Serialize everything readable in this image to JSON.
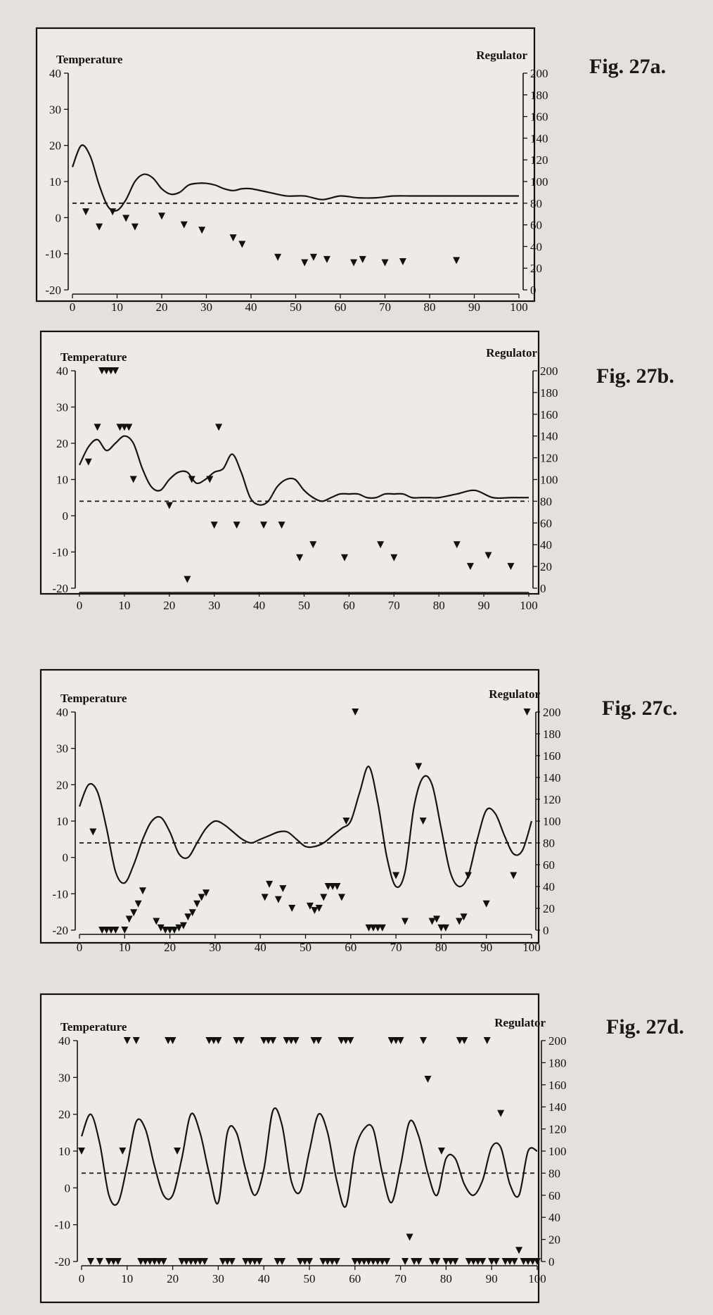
{
  "chart_data": [
    {
      "type": "line",
      "title": "Fig. 27a.",
      "ylabel_left": "Temperature",
      "ylabel_right": "Regulator",
      "x_ticks": [
        "0",
        "10",
        "20",
        "30",
        "40",
        "50",
        "60",
        "70",
        "80",
        "90",
        "100"
      ],
      "y_left_ticks": [
        "40",
        "30",
        "20",
        "10",
        "0",
        "-10",
        "-20"
      ],
      "y_right_ticks": [
        "200",
        "180",
        "160",
        "140",
        "120",
        "100",
        "80",
        "60",
        "40",
        "20",
        "0"
      ],
      "xlim": [
        0,
        100
      ],
      "ylim_left": [
        -20,
        40
      ],
      "ylim_right": [
        0,
        200
      ],
      "reference_level": 4,
      "series": [
        {
          "role": "temperature",
          "x": [
            0,
            2,
            4,
            6,
            8,
            10,
            12,
            14,
            16,
            18,
            20,
            22,
            24,
            26,
            28,
            30,
            32,
            34,
            36,
            38,
            40,
            44,
            48,
            52,
            56,
            60,
            64,
            68,
            72,
            76,
            80,
            84,
            88,
            92,
            96,
            100
          ],
          "values": [
            14,
            20,
            17,
            9,
            3,
            2,
            5,
            10,
            12,
            11,
            8,
            6.5,
            7,
            9,
            9.5,
            9.5,
            9,
            8,
            7.5,
            8,
            8,
            7,
            6,
            6,
            5,
            6,
            5.5,
            5.5,
            6,
            6,
            6,
            6,
            6,
            6,
            6,
            6
          ]
        },
        {
          "role": "regulator",
          "x": [
            3,
            6,
            9,
            12,
            14,
            20,
            25,
            29,
            36,
            38,
            46,
            52,
            54,
            57,
            63,
            65,
            70,
            74,
            86
          ],
          "values": [
            72,
            58,
            72,
            66,
            58,
            68,
            60,
            55,
            48,
            42,
            30,
            25,
            30,
            28,
            25,
            28,
            25,
            26,
            27
          ]
        }
      ]
    },
    {
      "type": "line",
      "title": "Fig. 27b.",
      "ylabel_left": "Temperature",
      "ylabel_right": "Regulator",
      "x_ticks": [
        "0",
        "10",
        "20",
        "30",
        "40",
        "50",
        "60",
        "70",
        "80",
        "90",
        "100"
      ],
      "y_left_ticks": [
        "40",
        "30",
        "20",
        "10",
        "0",
        "-10",
        "-20"
      ],
      "y_right_ticks": [
        "200",
        "180",
        "160",
        "140",
        "120",
        "100",
        "80",
        "60",
        "40",
        "20",
        "0"
      ],
      "xlim": [
        0,
        100
      ],
      "ylim_left": [
        -20,
        40
      ],
      "ylim_right": [
        0,
        200
      ],
      "reference_level": 4,
      "series": [
        {
          "role": "temperature",
          "x": [
            0,
            2,
            4,
            6,
            8,
            10,
            12,
            14,
            16,
            18,
            20,
            22,
            24,
            26,
            28,
            30,
            32,
            34,
            36,
            38,
            40,
            42,
            44,
            46,
            48,
            50,
            52,
            54,
            56,
            58,
            60,
            62,
            64,
            66,
            68,
            70,
            72,
            74,
            76,
            78,
            80,
            84,
            88,
            92,
            96,
            100
          ],
          "values": [
            14,
            19,
            21,
            18,
            20,
            22,
            20,
            13,
            8,
            7,
            10,
            12,
            12,
            9,
            10,
            12,
            13,
            17,
            12,
            5,
            3,
            4,
            8,
            10,
            10,
            7,
            5,
            4,
            5,
            6,
            6,
            6,
            5,
            5,
            6,
            6,
            6,
            5,
            5,
            5,
            5,
            6,
            7,
            5,
            5,
            5
          ]
        },
        {
          "role": "regulator",
          "x": [
            2,
            4,
            5,
            6,
            7,
            8,
            9,
            10,
            11,
            12,
            20,
            24,
            25,
            29,
            30,
            31,
            35,
            41,
            45,
            49,
            52,
            59,
            67,
            70,
            84,
            87,
            91,
            96
          ],
          "values": [
            116,
            148,
            200,
            200,
            200,
            200,
            148,
            148,
            148,
            100,
            76,
            8,
            100,
            100,
            58,
            148,
            58,
            58,
            58,
            28,
            40,
            28,
            40,
            28,
            40,
            20,
            30,
            20
          ]
        }
      ]
    },
    {
      "type": "line",
      "title": "Fig. 27c.",
      "ylabel_left": "Temperature",
      "ylabel_right": "Regulator",
      "x_ticks": [
        "0",
        "10",
        "20",
        "30",
        "40",
        "50",
        "60",
        "70",
        "80",
        "90",
        "100"
      ],
      "y_left_ticks": [
        "40",
        "30",
        "20",
        "10",
        "0",
        "-10",
        "-20"
      ],
      "y_right_ticks": [
        "200",
        "180",
        "160",
        "140",
        "120",
        "100",
        "80",
        "60",
        "40",
        "20",
        "0"
      ],
      "xlim": [
        0,
        100
      ],
      "ylim_left": [
        -20,
        40
      ],
      "ylim_right": [
        0,
        200
      ],
      "reference_level": 4,
      "series": [
        {
          "role": "temperature",
          "x": [
            0,
            2,
            4,
            6,
            8,
            10,
            12,
            14,
            16,
            18,
            20,
            22,
            24,
            26,
            28,
            30,
            32,
            34,
            36,
            38,
            40,
            42,
            44,
            46,
            48,
            50,
            52,
            54,
            56,
            58,
            60,
            62,
            64,
            66,
            68,
            70,
            72,
            74,
            76,
            78,
            80,
            82,
            84,
            86,
            88,
            90,
            92,
            94,
            96,
            98,
            100
          ],
          "values": [
            14,
            20,
            18,
            8,
            -4,
            -7,
            -2,
            5,
            10,
            11,
            7,
            1,
            0,
            4,
            8,
            10,
            9,
            7,
            5,
            4,
            5,
            6,
            7,
            7,
            5,
            3,
            3,
            4,
            6,
            8,
            10,
            18,
            25,
            15,
            0,
            -8,
            -4,
            14,
            22,
            20,
            8,
            -4,
            -8,
            -5,
            5,
            13,
            12,
            6,
            1,
            2,
            10
          ]
        },
        {
          "role": "regulator",
          "x": [
            3,
            5,
            6,
            7,
            8,
            10,
            11,
            12,
            13,
            14,
            17,
            18,
            19,
            20,
            21,
            22,
            23,
            24,
            25,
            26,
            27,
            28,
            41,
            42,
            44,
            45,
            47,
            51,
            52,
            53,
            54,
            55,
            56,
            57,
            58,
            59,
            61,
            64,
            65,
            66,
            67,
            70,
            72,
            75,
            76,
            78,
            79,
            80,
            81,
            84,
            85,
            86,
            90,
            96,
            99
          ],
          "values": [
            90,
            0,
            0,
            0,
            0,
            0,
            10,
            16,
            24,
            36,
            8,
            2,
            0,
            0,
            0,
            2,
            4,
            12,
            16,
            24,
            30,
            34,
            30,
            42,
            28,
            38,
            20,
            22,
            18,
            20,
            30,
            40,
            40,
            40,
            30,
            100,
            200,
            2,
            2,
            2,
            2,
            50,
            8,
            150,
            100,
            8,
            10,
            2,
            2,
            8,
            12,
            50,
            24,
            50,
            200
          ]
        }
      ]
    },
    {
      "type": "line",
      "title": "Fig. 27d.",
      "ylabel_left": "Temperature",
      "ylabel_right": "Regulator",
      "x_ticks": [
        "0",
        "10",
        "20",
        "30",
        "40",
        "50",
        "60",
        "70",
        "80",
        "90",
        "100"
      ],
      "y_left_ticks": [
        "40",
        "30",
        "20",
        "10",
        "0",
        "-10",
        "-20"
      ],
      "y_right_ticks": [
        "200",
        "180",
        "160",
        "140",
        "120",
        "100",
        "80",
        "60",
        "40",
        "20",
        "0"
      ],
      "xlim": [
        0,
        100
      ],
      "ylim_left": [
        -20,
        40
      ],
      "ylim_right": [
        0,
        200
      ],
      "reference_level": 4,
      "series": [
        {
          "role": "temperature",
          "x": [
            0,
            2,
            4,
            6,
            8,
            10,
            12,
            14,
            16,
            18,
            20,
            22,
            24,
            26,
            28,
            30,
            32,
            34,
            36,
            38,
            40,
            42,
            44,
            46,
            48,
            50,
            52,
            54,
            56,
            58,
            60,
            62,
            64,
            66,
            68,
            70,
            72,
            74,
            76,
            78,
            80,
            82,
            84,
            86,
            88,
            90,
            92,
            94,
            96,
            98,
            100
          ],
          "values": [
            14,
            20,
            12,
            -2,
            -4,
            6,
            18,
            16,
            6,
            -2,
            -2,
            8,
            20,
            15,
            4,
            -4,
            15,
            15,
            5,
            -2,
            5,
            21,
            17,
            2,
            -1,
            10,
            20,
            15,
            2,
            -5,
            10,
            16,
            16,
            4,
            -4,
            6,
            18,
            14,
            4,
            -2,
            8,
            8,
            1,
            -2,
            2,
            11,
            11,
            1,
            -2,
            10,
            10
          ]
        },
        {
          "role": "regulator",
          "x": [
            0,
            2,
            4,
            6,
            7,
            8,
            9,
            10,
            12,
            13,
            14,
            15,
            16,
            17,
            18,
            19,
            20,
            21,
            22,
            23,
            24,
            25,
            26,
            27,
            28,
            29,
            30,
            31,
            32,
            33,
            34,
            35,
            36,
            37,
            38,
            39,
            40,
            41,
            42,
            43,
            44,
            45,
            46,
            47,
            48,
            49,
            50,
            51,
            52,
            53,
            54,
            55,
            56,
            57,
            58,
            59,
            60,
            61,
            62,
            63,
            64,
            65,
            66,
            67,
            68,
            69,
            70,
            71,
            72,
            73,
            74,
            75,
            76,
            77,
            78,
            79,
            80,
            81,
            82,
            83,
            84,
            85,
            86,
            87,
            88,
            89,
            90,
            91,
            92,
            93,
            94,
            95,
            96,
            97,
            98,
            99,
            100
          ],
          "values": [
            100,
            0,
            0,
            0,
            0,
            0,
            100,
            200,
            200,
            0,
            0,
            0,
            0,
            0,
            0,
            200,
            200,
            100,
            0,
            0,
            0,
            0,
            0,
            0,
            200,
            200,
            200,
            0,
            0,
            0,
            200,
            200,
            0,
            0,
            0,
            0,
            200,
            200,
            200,
            0,
            0,
            200,
            200,
            200,
            0,
            0,
            0,
            200,
            200,
            0,
            0,
            0,
            0,
            200,
            200,
            200,
            0,
            0,
            0,
            0,
            0,
            0,
            0,
            0,
            200,
            200,
            200,
            0,
            22,
            0,
            0,
            200,
            165,
            0,
            0,
            100,
            0,
            0,
            0,
            200,
            200,
            0,
            0,
            0,
            0,
            200,
            0,
            0,
            134,
            0,
            0,
            0,
            10,
            0,
            0,
            0,
            0
          ]
        }
      ]
    }
  ]
}
